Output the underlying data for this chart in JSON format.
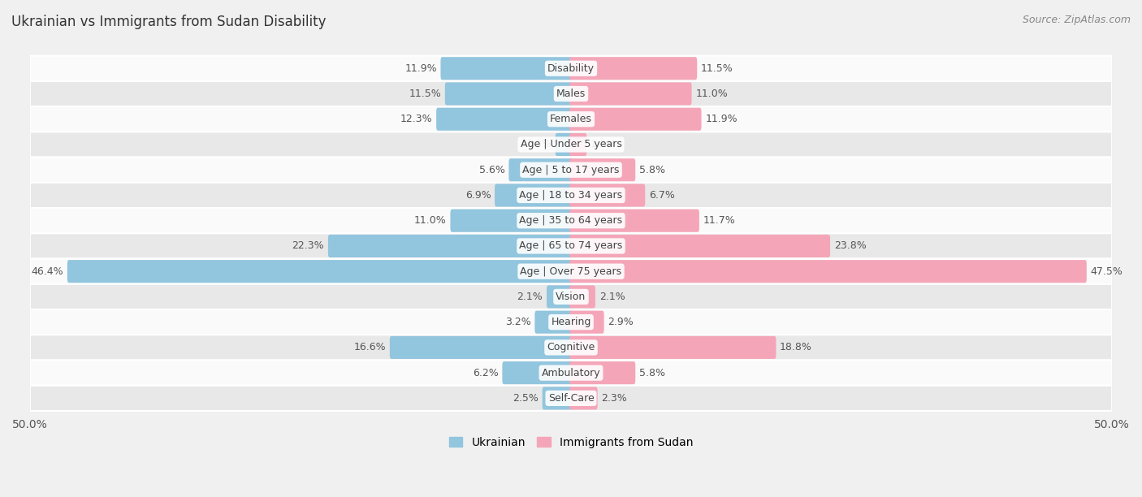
{
  "title": "Ukrainian vs Immigrants from Sudan Disability",
  "source": "Source: ZipAtlas.com",
  "categories": [
    "Disability",
    "Males",
    "Females",
    "Age | Under 5 years",
    "Age | 5 to 17 years",
    "Age | 18 to 34 years",
    "Age | 35 to 64 years",
    "Age | 65 to 74 years",
    "Age | Over 75 years",
    "Vision",
    "Hearing",
    "Cognitive",
    "Ambulatory",
    "Self-Care"
  ],
  "ukrainian": [
    11.9,
    11.5,
    12.3,
    1.3,
    5.6,
    6.9,
    11.0,
    22.3,
    46.4,
    2.1,
    3.2,
    16.6,
    6.2,
    2.5
  ],
  "sudan": [
    11.5,
    11.0,
    11.9,
    1.3,
    5.8,
    6.7,
    11.7,
    23.8,
    47.5,
    2.1,
    2.9,
    18.8,
    5.8,
    2.3
  ],
  "ukrainian_color": "#92C5DE",
  "sudan_color": "#F4A6B8",
  "axis_max": 50.0,
  "background_color": "#f0f0f0",
  "row_bg_light": "#fafafa",
  "row_bg_dark": "#e8e8e8",
  "label_fontsize": 9.0,
  "title_fontsize": 12,
  "source_fontsize": 9,
  "val_label_fontsize": 9.0
}
